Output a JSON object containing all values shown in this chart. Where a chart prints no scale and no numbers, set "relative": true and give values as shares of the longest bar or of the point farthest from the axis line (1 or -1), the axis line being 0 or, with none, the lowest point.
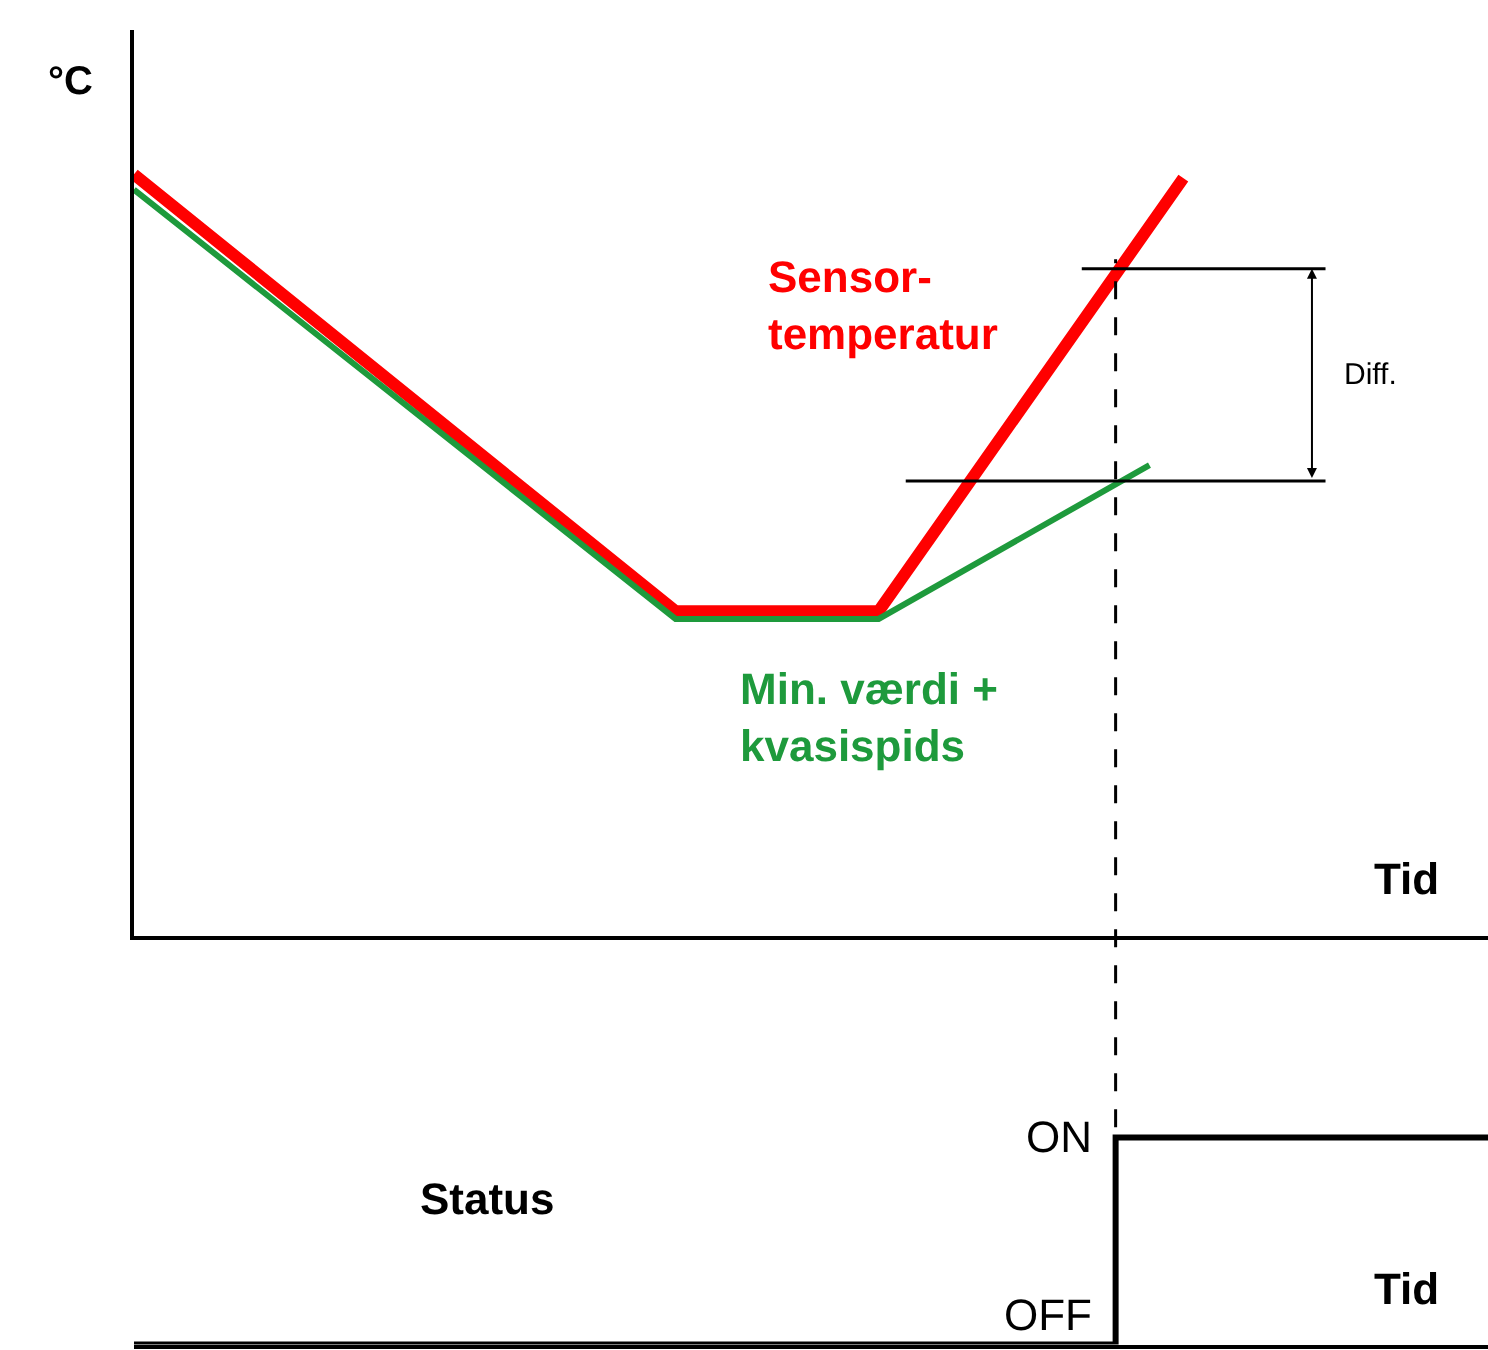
{
  "chart_data": [
    {
      "type": "line",
      "relative": true,
      "ylabel": "°C",
      "xlabel": "Tid",
      "categories": [
        null,
        null,
        null,
        null,
        null,
        null,
        null,
        null,
        null,
        null,
        null,
        null,
        null,
        null,
        null,
        null,
        null,
        null,
        null,
        null,
        null,
        null,
        null,
        null,
        null,
        null,
        null,
        null,
        null,
        null,
        null,
        null,
        null,
        null,
        null,
        null,
        null,
        null,
        null,
        null,
        null
      ],
      "series": [
        {
          "name": "Sensor-\ntemperatur",
          "color": "#ff0000",
          "values": [
            1,
            null,
            null,
            null,
            null,
            null,
            null,
            null,
            null,
            null,
            null,
            null,
            null,
            null,
            null,
            null,
            0.426,
            null,
            null,
            null,
            null,
            null,
            0.426,
            null,
            null,
            null,
            null,
            null,
            null,
            null,
            null,
            0.995,
            null,
            null,
            null,
            null,
            null,
            null,
            null,
            null,
            null
          ]
        },
        {
          "name": "Min. værdi +\nkvasispids",
          "color": "#1e9a3c",
          "values": [
            0.98,
            null,
            null,
            null,
            null,
            null,
            null,
            null,
            null,
            null,
            null,
            null,
            null,
            null,
            null,
            null,
            0.416,
            null,
            null,
            null,
            null,
            null,
            0.416,
            null,
            null,
            null,
            null,
            null,
            null,
            null,
            0.618,
            null,
            null,
            null,
            null,
            null,
            null,
            null,
            null,
            null,
            null
          ]
        }
      ],
      "ref_lines": [
        {
          "axis": "y",
          "value": 0.876,
          "color": "#000000"
        },
        {
          "axis": "y",
          "value": 0.597,
          "color": "#000000"
        }
      ],
      "annotations": [
        "Diff."
      ]
    },
    {
      "type": "step",
      "relative": true,
      "ylabel": "Status",
      "xlabel": "Tid",
      "categories": [
        null,
        null,
        null,
        null,
        null,
        null,
        null,
        null,
        null,
        null,
        null,
        null,
        null,
        null,
        null,
        null,
        null,
        null,
        null,
        null,
        null,
        null,
        null,
        null,
        null,
        null,
        null,
        null,
        null,
        null,
        null,
        null,
        null,
        null,
        null,
        null,
        null,
        null,
        null,
        null,
        null
      ],
      "series": [
        {
          "color": "#000000",
          "values": [
            0,
            0,
            0,
            0,
            0,
            0,
            0,
            0,
            0,
            0,
            0,
            0,
            0,
            0,
            0,
            0,
            0,
            0,
            0,
            0,
            0,
            0,
            0,
            0,
            0,
            0,
            0,
            0,
            0,
            1,
            1,
            1,
            1,
            1,
            1,
            1,
            1,
            1,
            1,
            1,
            1
          ]
        }
      ],
      "annotations": [
        "ON",
        "OFF"
      ]
    }
  ]
}
